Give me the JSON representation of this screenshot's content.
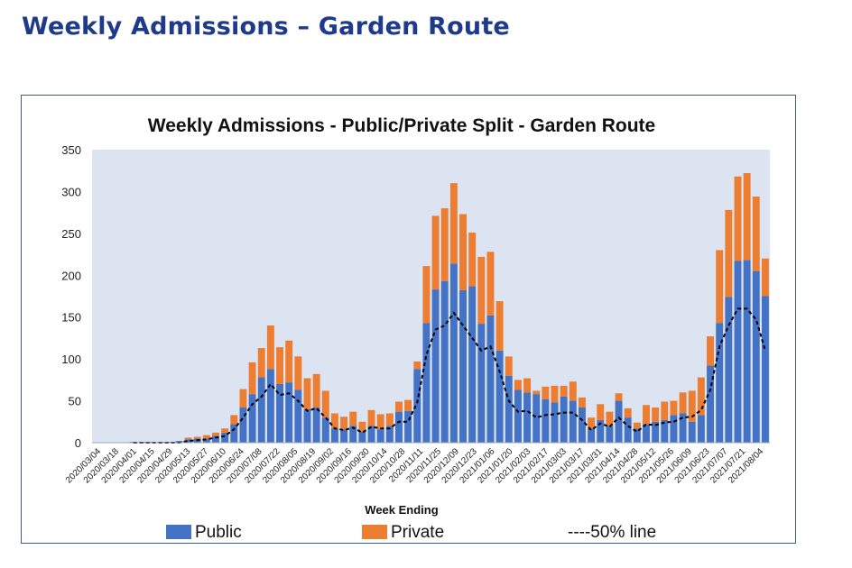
{
  "page": {
    "title": "Weekly Admissions – Garden Route"
  },
  "chart_data": {
    "type": "bar",
    "stacked": true,
    "title": "Weekly Admissions - Public/Private Split - Garden Route",
    "xlabel": "Week Ending",
    "ylabel": "",
    "ylim": [
      0,
      350
    ],
    "yticks": [
      0,
      50,
      100,
      150,
      200,
      250,
      300,
      350
    ],
    "grid": false,
    "legend_position": "bottom",
    "colors": {
      "plot_bg": "#dce4f1",
      "public": "#4472c4",
      "private": "#ed7d31",
      "line": "#000000"
    },
    "xtick_labels": [
      "2020/03/04",
      "2020/03/18",
      "2020/04/01",
      "2020/04/15",
      "2020/04/29",
      "2020/05/13",
      "2020/05/27",
      "2020/06/10",
      "2020/06/24",
      "2020/07/08",
      "2020/07/22",
      "2020/08/05",
      "2020/08/19",
      "2020/09/02",
      "2020/09/16",
      "2020/09/30",
      "2020/10/14",
      "2020/10/28",
      "2020/11/11",
      "2020/11/25",
      "2020/12/09",
      "2020/12/23",
      "2021/01/06",
      "2021/01/20",
      "2021/02/03",
      "2021/02/17",
      "2021/03/03",
      "2021/03/17",
      "2021/03/31",
      "2021/04/14",
      "2021/04/28",
      "2021/05/12",
      "2021/05/26",
      "2021/06/09",
      "2021/06/23",
      "2021/07/07",
      "2021/07/21",
      "2021/08/04"
    ],
    "series": [
      {
        "name": "Public",
        "type": "bar",
        "values": [
          0,
          0,
          0,
          0,
          1,
          1,
          1,
          1,
          1,
          2,
          4,
          5,
          5,
          8,
          12,
          22,
          42,
          58,
          78,
          88,
          70,
          72,
          63,
          40,
          42,
          30,
          17,
          16,
          20,
          13,
          20,
          16,
          20,
          37,
          38,
          88,
          143,
          183,
          193,
          214,
          182,
          187,
          142,
          152,
          110,
          80,
          63,
          60,
          58,
          52,
          48,
          55,
          50,
          42,
          17,
          27,
          20,
          50,
          30,
          17,
          22,
          25,
          27,
          33,
          35,
          25,
          33,
          92,
          143,
          174,
          217,
          218,
          205,
          175
        ]
      },
      {
        "name": "Private",
        "type": "bar",
        "values": [
          0,
          0,
          0,
          0,
          0,
          0,
          0,
          0,
          0,
          0,
          2,
          2,
          4,
          4,
          5,
          11,
          22,
          38,
          35,
          52,
          44,
          50,
          40,
          37,
          40,
          32,
          18,
          15,
          17,
          12,
          19,
          18,
          15,
          12,
          13,
          9,
          68,
          88,
          87,
          96,
          91,
          64,
          80,
          76,
          59,
          23,
          12,
          17,
          4,
          15,
          20,
          13,
          23,
          12,
          13,
          19,
          17,
          9,
          11,
          7,
          23,
          17,
          22,
          17,
          25,
          37,
          45,
          35,
          87,
          104,
          101,
          104,
          89,
          45
        ]
      },
      {
        "name": "50% line",
        "type": "line",
        "style": "dashed",
        "values": [
          0,
          0,
          0,
          0,
          0,
          0,
          0,
          0,
          0,
          0,
          2,
          3,
          4,
          6,
          8,
          16,
          30,
          46,
          55,
          70,
          57,
          59,
          50,
          38,
          41,
          30,
          17,
          15,
          18,
          12,
          19,
          17,
          17,
          25,
          25,
          48,
          105,
          135,
          140,
          155,
          140,
          125,
          110,
          115,
          85,
          50,
          37,
          38,
          30,
          33,
          34,
          36,
          36,
          27,
          15,
          23,
          19,
          30,
          20,
          13,
          22,
          21,
          24,
          25,
          30,
          31,
          39,
          63,
          115,
          140,
          160,
          160,
          147,
          110
        ]
      }
    ]
  },
  "legend": {
    "public": "Public",
    "private": "Private",
    "line": "----50% line"
  }
}
